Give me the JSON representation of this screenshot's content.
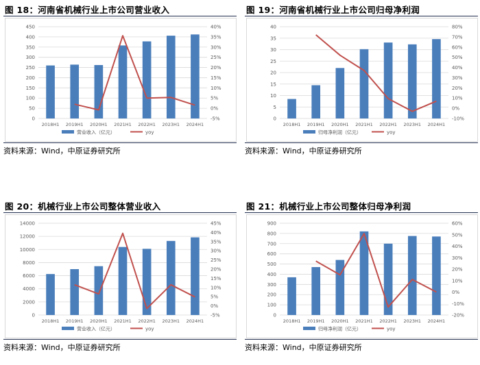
{
  "panels": [
    {
      "fig_label": "图 18：",
      "title": "河南省机械行业上市公司营业收入",
      "source": "资料来源：Wind，中原证券研究所"
    },
    {
      "fig_label": "图 19：",
      "title": "河南省机械行业上市公司归母净利润",
      "source": "资料来源：Wind，中原证券研究所"
    },
    {
      "fig_label": "图 20：",
      "title": "机械行业上市公司整体营业收入",
      "source": "资料来源：Wind，中原证券研究所"
    },
    {
      "fig_label": "图 21：",
      "title": "机械行业上市公司整体归母净利润",
      "source": "资料来源：Wind，中原证券研究所"
    }
  ],
  "colors": {
    "bar": "#4a7ebb",
    "line": "#c0504d",
    "grid": "#d9d9d9",
    "axis_text": "#595959",
    "rule": "#1f2d4d"
  },
  "chart_data": [
    {
      "type": "bar",
      "title": "河南省机械行业上市公司营业收入",
      "categories": [
        "2018H1",
        "2019H1",
        "2020H1",
        "2021H1",
        "2022H1",
        "2023H1",
        "2024H1"
      ],
      "series": [
        {
          "name": "营业收入（亿元）",
          "kind": "bar",
          "axis": "left",
          "values": [
            260,
            264,
            262,
            358,
            378,
            406,
            412
          ]
        },
        {
          "name": "yoy",
          "kind": "line",
          "axis": "right",
          "values": [
            null,
            2.0,
            -0.8,
            35.6,
            5.0,
            5.3,
            1.5
          ]
        }
      ],
      "left_ticks": [
        0,
        50,
        100,
        150,
        200,
        250,
        300,
        350,
        400,
        450
      ],
      "right_ticks": [
        -5,
        0,
        5,
        10,
        15,
        20,
        25,
        30,
        35,
        40
      ],
      "right_unit": "%",
      "grid": true,
      "legend_placement": "bottom"
    },
    {
      "type": "bar",
      "title": "河南省机械行业上市公司归母净利润",
      "categories": [
        "2018H1",
        "2019H1",
        "2020H1",
        "2021H1",
        "2022H1",
        "2023H1",
        "2024H1"
      ],
      "series": [
        {
          "name": "归母净利润（亿元）",
          "kind": "bar",
          "axis": "left",
          "values": [
            8.5,
            14.5,
            22,
            30.2,
            33.1,
            32.3,
            34.6
          ]
        },
        {
          "name": "yoy",
          "kind": "line",
          "axis": "right",
          "values": [
            null,
            72,
            52,
            37,
            9.5,
            -3,
            7
          ]
        }
      ],
      "left_ticks": [
        0,
        5,
        10,
        15,
        20,
        25,
        30,
        35,
        40
      ],
      "right_ticks": [
        -10,
        0,
        10,
        20,
        30,
        40,
        50,
        60,
        70,
        80
      ],
      "right_unit": "%",
      "grid": true,
      "legend_placement": "bottom"
    },
    {
      "type": "bar",
      "title": "机械行业上市公司整体营业收入",
      "categories": [
        "2018H1",
        "2019H1",
        "2020H1",
        "2021H1",
        "2022H1",
        "2023H1",
        "2024H1"
      ],
      "series": [
        {
          "name": "营业收入（亿元）",
          "kind": "bar",
          "axis": "left",
          "values": [
            6250,
            7000,
            7450,
            10380,
            10100,
            11300,
            11850
          ]
        },
        {
          "name": "yoy",
          "kind": "line",
          "axis": "right",
          "values": [
            null,
            11.5,
            6.5,
            39.5,
            -1.5,
            11.5,
            4.8
          ]
        }
      ],
      "left_ticks": [
        0,
        2000,
        4000,
        6000,
        8000,
        10000,
        12000,
        14000
      ],
      "right_ticks": [
        -5,
        0,
        5,
        10,
        15,
        20,
        25,
        30,
        35,
        40,
        45
      ],
      "right_unit": "%",
      "grid": true,
      "legend_placement": "bottom"
    },
    {
      "type": "bar",
      "title": "机械行业上市公司整体归母净利润",
      "categories": [
        "2018H1",
        "2019H1",
        "2020H1",
        "2021H1",
        "2022H1",
        "2023H1",
        "2024H1"
      ],
      "series": [
        {
          "name": "归母净利润（亿元）",
          "kind": "bar",
          "axis": "left",
          "values": [
            370,
            470,
            540,
            820,
            700,
            775,
            770
          ]
        },
        {
          "name": "yoy",
          "kind": "line",
          "axis": "right",
          "values": [
            null,
            27,
            15,
            51,
            -13,
            11,
            0
          ]
        }
      ],
      "left_ticks": [
        0,
        100,
        200,
        300,
        400,
        500,
        600,
        700,
        800,
        900
      ],
      "right_ticks": [
        -20,
        -10,
        0,
        10,
        20,
        30,
        40,
        50,
        60
      ],
      "right_unit": "%",
      "grid": true,
      "legend_placement": "bottom"
    }
  ]
}
